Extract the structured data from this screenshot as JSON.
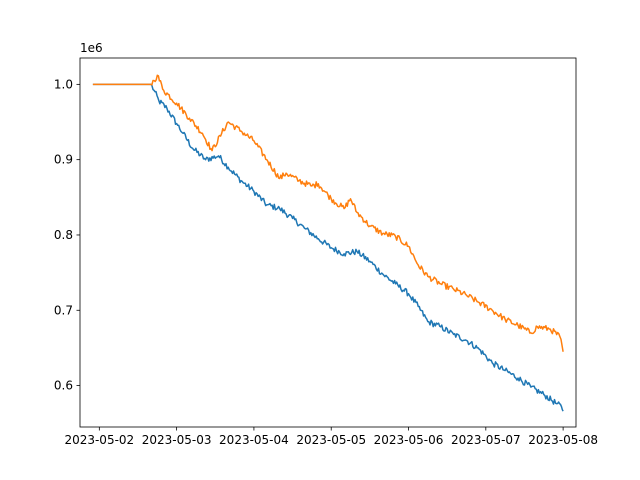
{
  "chart_data": {
    "type": "line",
    "title": "",
    "xlabel": "",
    "ylabel": "",
    "y_offset_label": "1e6",
    "x_tick_labels": [
      "2023-05-02",
      "2023-05-03",
      "2023-05-04",
      "2023-05-05",
      "2023-05-06",
      "2023-05-07",
      "2023-05-08"
    ],
    "y_tick_labels": [
      "0.6",
      "0.7",
      "0.8",
      "0.9",
      "1.0"
    ],
    "y_ticks": [
      0.6,
      0.7,
      0.8,
      0.9,
      1.0
    ],
    "xlim": [
      "2023-05-01 18:00",
      "2023-05-08 04:00"
    ],
    "ylim": [
      0.545,
      1.035
    ],
    "grid": false,
    "legend": "none",
    "series": [
      {
        "color": "#1f77b4",
        "points": [
          [
            "2023-05-01 22:00",
            1.0
          ],
          [
            "2023-05-02 16:00",
            1.0
          ],
          [
            "2023-05-02 17:00",
            0.992
          ],
          [
            "2023-05-02 18:30",
            0.978
          ],
          [
            "2023-05-02 21:00",
            0.968
          ],
          [
            "2023-05-03 00:00",
            0.948
          ],
          [
            "2023-05-03 02:00",
            0.935
          ],
          [
            "2023-05-03 05:00",
            0.915
          ],
          [
            "2023-05-03 09:00",
            0.9
          ],
          [
            "2023-05-03 13:00",
            0.905
          ],
          [
            "2023-05-03 16:00",
            0.89
          ],
          [
            "2023-05-03 20:00",
            0.872
          ],
          [
            "2023-05-04 00:00",
            0.858
          ],
          [
            "2023-05-04 04:00",
            0.84
          ],
          [
            "2023-05-04 08:00",
            0.835
          ],
          [
            "2023-05-04 12:00",
            0.822
          ],
          [
            "2023-05-04 16:00",
            0.808
          ],
          [
            "2023-05-04 20:00",
            0.795
          ],
          [
            "2023-05-05 00:00",
            0.783
          ],
          [
            "2023-05-05 04:00",
            0.775
          ],
          [
            "2023-05-05 08:00",
            0.778
          ],
          [
            "2023-05-05 12:00",
            0.765
          ],
          [
            "2023-05-05 16:00",
            0.748
          ],
          [
            "2023-05-05 20:00",
            0.735
          ],
          [
            "2023-05-06 00:00",
            0.722
          ],
          [
            "2023-05-06 03:00",
            0.705
          ],
          [
            "2023-05-06 06:00",
            0.685
          ],
          [
            "2023-05-06 10:00",
            0.678
          ],
          [
            "2023-05-06 14:00",
            0.668
          ],
          [
            "2023-05-06 18:00",
            0.66
          ],
          [
            "2023-05-06 22:00",
            0.648
          ],
          [
            "2023-05-07 02:00",
            0.63
          ],
          [
            "2023-05-07 06:00",
            0.62
          ],
          [
            "2023-05-07 10:00",
            0.61
          ],
          [
            "2023-05-07 14:00",
            0.598
          ],
          [
            "2023-05-07 18:00",
            0.588
          ],
          [
            "2023-05-07 22:00",
            0.576
          ],
          [
            "2023-05-07 23:30",
            0.572
          ],
          [
            "2023-05-08 00:00",
            0.566
          ]
        ]
      },
      {
        "color": "#ff7f0e",
        "points": [
          [
            "2023-05-01 22:00",
            1.0
          ],
          [
            "2023-05-02 16:00",
            1.0
          ],
          [
            "2023-05-02 17:00",
            1.005
          ],
          [
            "2023-05-02 18:00",
            1.012
          ],
          [
            "2023-05-02 20:00",
            0.992
          ],
          [
            "2023-05-03 00:00",
            0.975
          ],
          [
            "2023-05-03 04:00",
            0.955
          ],
          [
            "2023-05-03 08:00",
            0.935
          ],
          [
            "2023-05-03 11:00",
            0.912
          ],
          [
            "2023-05-03 14:00",
            0.935
          ],
          [
            "2023-05-03 16:00",
            0.95
          ],
          [
            "2023-05-03 20:00",
            0.938
          ],
          [
            "2023-05-04 00:00",
            0.925
          ],
          [
            "2023-05-04 04:00",
            0.9
          ],
          [
            "2023-05-04 08:00",
            0.875
          ],
          [
            "2023-05-04 10:00",
            0.882
          ],
          [
            "2023-05-04 14:00",
            0.872
          ],
          [
            "2023-05-04 18:00",
            0.865
          ],
          [
            "2023-05-04 20:00",
            0.868
          ],
          [
            "2023-05-05 00:00",
            0.848
          ],
          [
            "2023-05-05 04:00",
            0.835
          ],
          [
            "2023-05-05 06:00",
            0.848
          ],
          [
            "2023-05-05 08:00",
            0.83
          ],
          [
            "2023-05-05 12:00",
            0.812
          ],
          [
            "2023-05-05 16:00",
            0.802
          ],
          [
            "2023-05-05 20:00",
            0.798
          ],
          [
            "2023-05-06 00:00",
            0.785
          ],
          [
            "2023-05-06 03:00",
            0.76
          ],
          [
            "2023-05-06 06:00",
            0.745
          ],
          [
            "2023-05-06 10:00",
            0.735
          ],
          [
            "2023-05-06 14:00",
            0.728
          ],
          [
            "2023-05-06 18:00",
            0.72
          ],
          [
            "2023-05-06 22:00",
            0.71
          ],
          [
            "2023-05-07 02:00",
            0.7
          ],
          [
            "2023-05-07 06:00",
            0.688
          ],
          [
            "2023-05-07 10:00",
            0.68
          ],
          [
            "2023-05-07 14:00",
            0.67
          ],
          [
            "2023-05-07 16:00",
            0.678
          ],
          [
            "2023-05-07 20:00",
            0.675
          ],
          [
            "2023-05-07 23:00",
            0.665
          ],
          [
            "2023-05-08 00:00",
            0.645
          ]
        ]
      }
    ]
  }
}
